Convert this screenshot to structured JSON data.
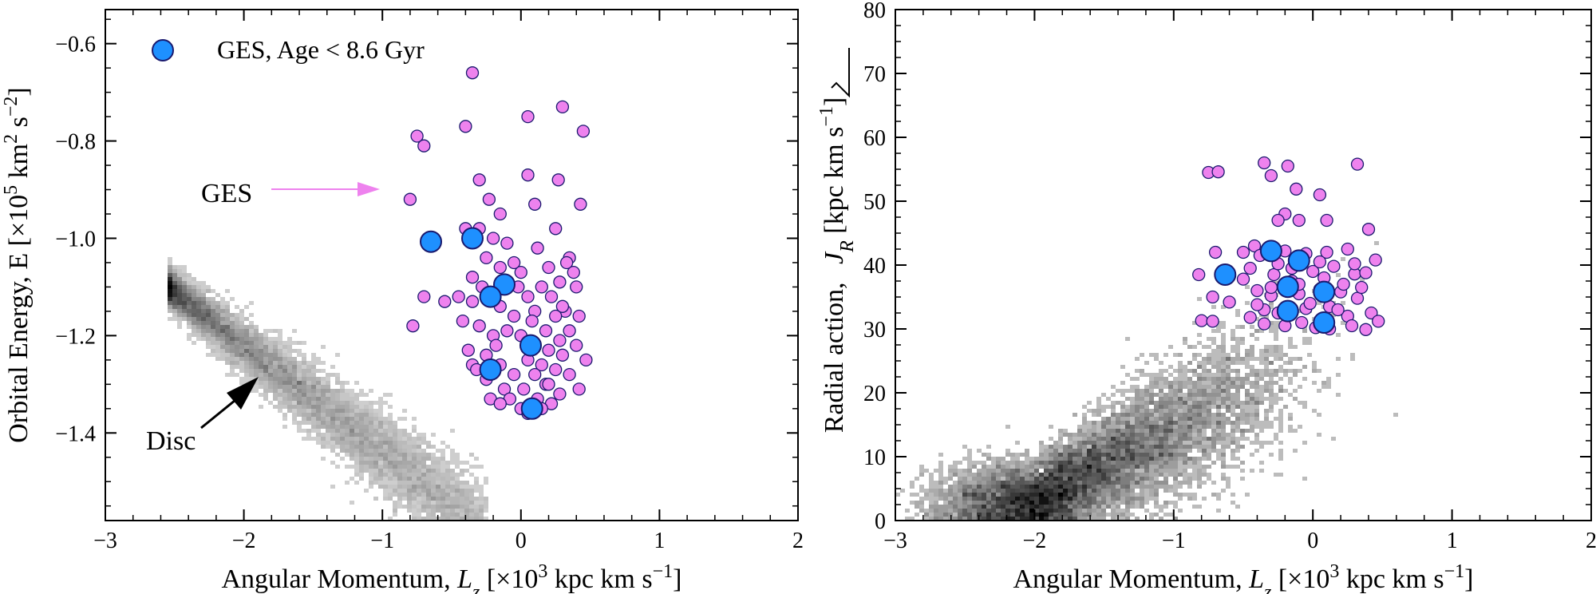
{
  "colors": {
    "ges_small": "#ee82ee",
    "ges_young": "#1e90ff",
    "marker_edge": "#1a1a6e",
    "ges_annotation": "#ee82ee",
    "disc_annotation": "#000000",
    "disc_density": "#000000"
  },
  "legend": {
    "label": "GES, Age < 8.6 Gyr"
  },
  "annotations": {
    "ges": "GES",
    "disc": "Disc"
  },
  "chart_data": [
    {
      "type": "scatter",
      "xlabel_prefix": "Angular Momentum, ",
      "xlabel_symbol": "L",
      "xlabel_sub": "z",
      "xlabel_units": " [×10",
      "xlabel_exp": "3",
      "xlabel_units2": " kpc km s",
      "xlabel_units2_exp": "−1",
      "xlabel_close": "]",
      "ylabel_prefix": "Orbital Energy, E [×10",
      "ylabel_exp": "5",
      "ylabel_mid": " km",
      "ylabel_mid_exp": "2",
      "ylabel_end": " s",
      "ylabel_end_exp": "−2",
      "ylabel_close": "]",
      "xlim": [
        -3,
        2
      ],
      "ylim": [
        -1.58,
        -0.53
      ],
      "xticks": [
        -3,
        -2,
        -1,
        0,
        1,
        2
      ],
      "xtick_labels": [
        "−3",
        "−2",
        "−1",
        "0",
        "1",
        "2"
      ],
      "yticks": [
        -1.4,
        -1.2,
        -1.0,
        -0.8,
        -0.6
      ],
      "ytick_labels": [
        "−1.4",
        "−1.2",
        "−1.0",
        "−0.8",
        "−0.6"
      ],
      "series": [
        {
          "name": "GES",
          "points": [
            [
              -0.35,
              -0.66
            ],
            [
              0.3,
              -0.73
            ],
            [
              0.05,
              -0.75
            ],
            [
              -0.4,
              -0.77
            ],
            [
              0.45,
              -0.78
            ],
            [
              -0.75,
              -0.79
            ],
            [
              -0.7,
              -0.81
            ],
            [
              -0.3,
              -0.88
            ],
            [
              0.05,
              -0.87
            ],
            [
              0.27,
              -0.88
            ],
            [
              -0.8,
              -0.92
            ],
            [
              -0.23,
              -0.92
            ],
            [
              0.1,
              -0.93
            ],
            [
              0.43,
              -0.93
            ],
            [
              -0.15,
              -0.95
            ],
            [
              -0.4,
              -0.98
            ],
            [
              0.25,
              -0.98
            ],
            [
              -0.3,
              -0.98
            ],
            [
              -0.2,
              -1.0
            ],
            [
              -0.1,
              -1.01
            ],
            [
              0.12,
              -1.02
            ],
            [
              0.35,
              -1.04
            ],
            [
              -0.25,
              -1.04
            ],
            [
              -0.05,
              -1.05
            ],
            [
              -0.15,
              -1.06
            ],
            [
              0.2,
              -1.06
            ],
            [
              0.33,
              -1.05
            ],
            [
              0.0,
              -1.07
            ],
            [
              -0.35,
              -1.08
            ],
            [
              0.38,
              -1.07
            ],
            [
              0.28,
              -1.09
            ],
            [
              -0.28,
              -1.1
            ],
            [
              0.15,
              -1.1
            ],
            [
              -0.45,
              -1.12
            ],
            [
              0.05,
              -1.12
            ],
            [
              0.22,
              -1.12
            ],
            [
              -0.7,
              -1.12
            ],
            [
              -0.55,
              -1.13
            ],
            [
              -0.35,
              -1.13
            ],
            [
              -0.15,
              -1.14
            ],
            [
              0.1,
              -1.15
            ],
            [
              0.32,
              -1.15
            ],
            [
              -0.05,
              -1.16
            ],
            [
              0.25,
              -1.16
            ],
            [
              0.42,
              -1.16
            ],
            [
              -0.3,
              -1.18
            ],
            [
              -0.1,
              -1.19
            ],
            [
              0.18,
              -1.19
            ],
            [
              0.35,
              -1.19
            ],
            [
              -0.78,
              -1.18
            ],
            [
              -0.2,
              -1.2
            ],
            [
              0.0,
              -1.2
            ],
            [
              0.28,
              -1.21
            ],
            [
              0.1,
              -1.22
            ],
            [
              0.4,
              -1.22
            ],
            [
              0.2,
              -1.23
            ],
            [
              -0.38,
              -1.23
            ],
            [
              -0.25,
              -1.24
            ],
            [
              0.3,
              -1.24
            ],
            [
              0.05,
              -1.25
            ],
            [
              -0.15,
              -1.26
            ],
            [
              0.15,
              -1.26
            ],
            [
              0.47,
              -1.25
            ],
            [
              -0.35,
              -1.26
            ],
            [
              0.25,
              -1.27
            ],
            [
              -0.05,
              -1.28
            ],
            [
              0.1,
              -1.28
            ],
            [
              0.35,
              -1.28
            ],
            [
              -0.25,
              -1.29
            ],
            [
              0.18,
              -1.3
            ],
            [
              -0.12,
              -1.31
            ],
            [
              0.02,
              -1.31
            ],
            [
              0.42,
              -1.31
            ],
            [
              0.28,
              -1.32
            ],
            [
              -0.22,
              -1.33
            ],
            [
              -0.08,
              -1.33
            ],
            [
              0.12,
              -1.33
            ],
            [
              0.22,
              -1.34
            ],
            [
              0.0,
              -1.35
            ],
            [
              0.15,
              -1.35
            ],
            [
              -0.15,
              -1.34
            ],
            [
              0.05,
              -1.36
            ],
            [
              -0.32,
              -1.27
            ],
            [
              -0.18,
              -1.22
            ],
            [
              0.08,
              -1.17
            ],
            [
              -0.42,
              -1.17
            ],
            [
              0.2,
              -1.3
            ],
            [
              0.3,
              -1.14
            ],
            [
              -0.02,
              -1.1
            ],
            [
              0.4,
              -1.1
            ]
          ]
        },
        {
          "name": "GES, Age < 8.6 Gyr",
          "points": [
            [
              -0.65,
              -1.007
            ],
            [
              -0.35,
              -1.0
            ],
            [
              -0.12,
              -1.095
            ],
            [
              -0.22,
              -1.12
            ],
            [
              0.07,
              -1.22
            ],
            [
              -0.22,
              -1.27
            ],
            [
              0.08,
              -1.35
            ]
          ]
        }
      ]
    },
    {
      "type": "scatter",
      "xlabel_prefix": "Angular Momentum, ",
      "xlabel_symbol": "L",
      "xlabel_sub": "z",
      "xlabel_units": " [×10",
      "xlabel_exp": "3",
      "xlabel_units2": " kpc km s",
      "xlabel_units2_exp": "−1",
      "xlabel_close": "]",
      "ylabel_prefix": "Radial action, ",
      "ylabel_symbol": "J",
      "ylabel_sub": "R",
      "ylabel_units": " [kpc km s",
      "ylabel_units_exp": "−1",
      "ylabel_close": "]",
      "xlim": [
        -3,
        2
      ],
      "ylim": [
        0,
        80
      ],
      "xticks": [
        -3,
        -2,
        -1,
        0,
        1,
        2
      ],
      "xtick_labels": [
        "−3",
        "−2",
        "−1",
        "0",
        "1",
        "2"
      ],
      "yticks": [
        0,
        10,
        20,
        30,
        40,
        50,
        60,
        70,
        80
      ],
      "ytick_labels": [
        "0",
        "10",
        "20",
        "30",
        "40",
        "50",
        "60",
        "70",
        "80"
      ],
      "series": [
        {
          "name": "GES",
          "points": [
            [
              -0.75,
              54.5
            ],
            [
              -0.68,
              54.6
            ],
            [
              -0.35,
              56.0
            ],
            [
              -0.18,
              55.5
            ],
            [
              0.32,
              55.8
            ],
            [
              -0.3,
              54.0
            ],
            [
              -0.12,
              51.9
            ],
            [
              0.05,
              51.0
            ],
            [
              -0.2,
              48.0
            ],
            [
              0.4,
              45.6
            ],
            [
              -0.42,
              43.0
            ],
            [
              -0.25,
              47.0
            ],
            [
              -0.1,
              47.0
            ],
            [
              0.1,
              47.0
            ],
            [
              -0.7,
              42.0
            ],
            [
              -0.5,
              42.0
            ],
            [
              -0.38,
              41.5
            ],
            [
              -0.2,
              42.2
            ],
            [
              -0.05,
              41.8
            ],
            [
              0.1,
              42.0
            ],
            [
              0.25,
              42.5
            ],
            [
              0.45,
              40.8
            ],
            [
              -0.82,
              38.5
            ],
            [
              -0.45,
              39.5
            ],
            [
              -0.28,
              38.5
            ],
            [
              -0.15,
              39.5
            ],
            [
              0.0,
              39.0
            ],
            [
              0.15,
              39.8
            ],
            [
              0.3,
              38.6
            ],
            [
              0.38,
              38.8
            ],
            [
              -0.72,
              35.0
            ],
            [
              -0.6,
              34.2
            ],
            [
              -0.4,
              36.0
            ],
            [
              -0.3,
              35.2
            ],
            [
              -0.1,
              35.5
            ],
            [
              0.05,
              36.2
            ],
            [
              0.2,
              35.8
            ],
            [
              0.32,
              34.8
            ],
            [
              -0.35,
              33.0
            ],
            [
              -0.25,
              32.5
            ],
            [
              -0.05,
              33.2
            ],
            [
              0.12,
              33.5
            ],
            [
              0.25,
              32.0
            ],
            [
              0.42,
              32.5
            ],
            [
              -0.8,
              31.3
            ],
            [
              -0.72,
              31.2
            ],
            [
              -0.45,
              31.8
            ],
            [
              -0.35,
              30.8
            ],
            [
              -0.2,
              30.5
            ],
            [
              -0.08,
              31.0
            ],
            [
              0.02,
              30.2
            ],
            [
              0.12,
              30.0
            ],
            [
              0.28,
              30.5
            ],
            [
              0.38,
              29.9
            ],
            [
              0.47,
              31.2
            ],
            [
              -0.15,
              37.5
            ],
            [
              0.22,
              37.0
            ],
            [
              -0.25,
              40.2
            ],
            [
              0.05,
              40.5
            ],
            [
              0.35,
              36.5
            ],
            [
              -0.5,
              37.8
            ],
            [
              -0.02,
              34.0
            ],
            [
              0.18,
              33.0
            ],
            [
              -0.4,
              33.8
            ],
            [
              0.08,
              38.0
            ],
            [
              -0.3,
              36.5
            ],
            [
              0.3,
              40.2
            ],
            [
              -0.1,
              37.0
            ]
          ]
        },
        {
          "name": "GES, Age < 8.6 Gyr",
          "points": [
            [
              -0.63,
              38.5
            ],
            [
              -0.3,
              42.2
            ],
            [
              -0.1,
              40.7
            ],
            [
              -0.18,
              36.6
            ],
            [
              0.08,
              35.8
            ],
            [
              -0.18,
              32.8
            ],
            [
              0.08,
              31.0
            ]
          ]
        }
      ]
    }
  ]
}
